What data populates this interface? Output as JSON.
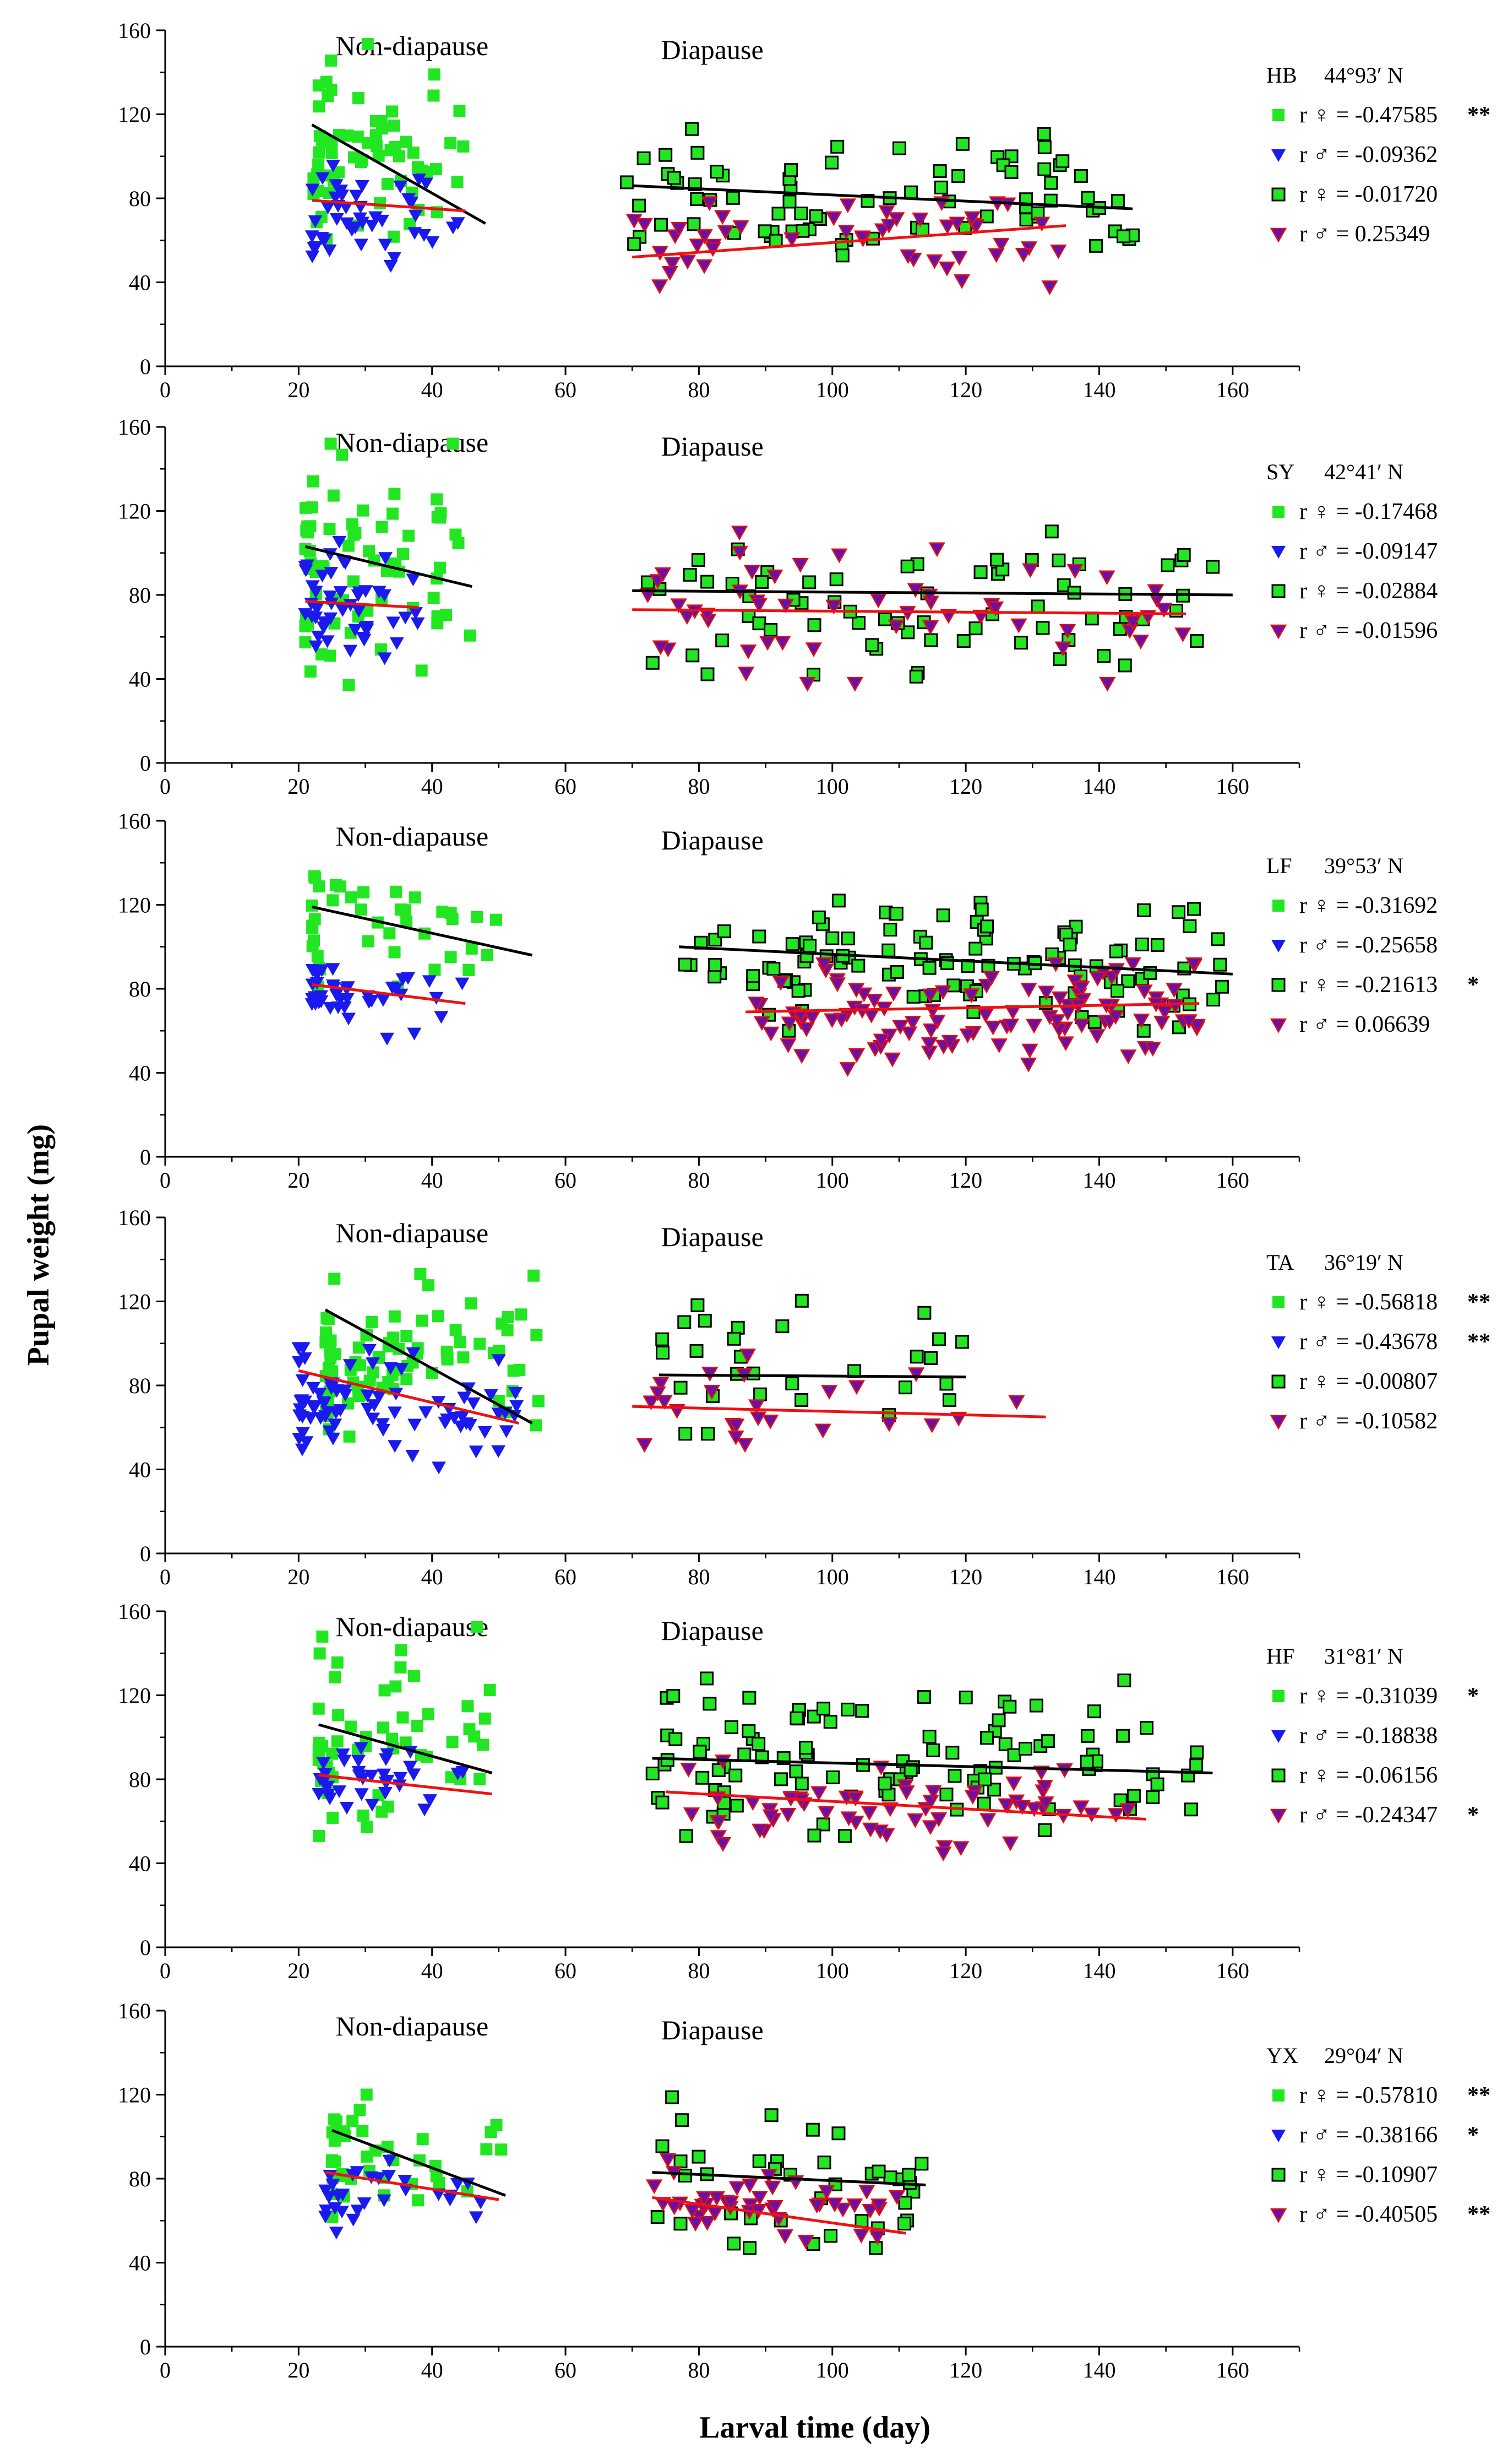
{
  "figure": {
    "ylabel": "Pupal weight (mg)",
    "xlabel": "Larval time (day)"
  },
  "colors": {
    "female_non_diapause": "#22e622",
    "male_non_diapause": "#1a1aee",
    "female_diapause_fill": "#22e622",
    "female_diapause_edge": "#000000",
    "male_diapause_fill": "#6a0fa8",
    "male_diapause_edge": "#e01010",
    "female_line": "#000000",
    "male_line": "#ee1111"
  },
  "chart_data": [
    {
      "type": "scatter",
      "panel": "HB",
      "site": "HB",
      "latitude": "44°93′ N",
      "xlim": [
        0,
        170
      ],
      "ylim": [
        0,
        160
      ],
      "xticks": [
        0,
        20,
        40,
        60,
        80,
        100,
        120,
        140,
        160
      ],
      "yticks": [
        0,
        40,
        80,
        120,
        160
      ],
      "region_labels": [
        "Non-diapause",
        "Diapause"
      ],
      "legend": [
        {
          "marker": "sq",
          "text": "r ♀ = -0.47585",
          "sig": "**"
        },
        {
          "marker": "tri",
          "text": "r ♂ = -0.09362",
          "sig": ""
        },
        {
          "marker": "bsq",
          "text": "r ♀ = -0.01720",
          "sig": ""
        },
        {
          "marker": "btri",
          "text": "r ♂ = 0.25349",
          "sig": ""
        }
      ],
      "trend_lines": {
        "female_non_diapause": [
          [
            22,
            115
          ],
          [
            48,
            68
          ]
        ],
        "male_non_diapause": [
          [
            22,
            79
          ],
          [
            45,
            74
          ]
        ],
        "female_diapause": [
          [
            70,
            86
          ],
          [
            145,
            75
          ]
        ],
        "male_diapause": [
          [
            70,
            52
          ],
          [
            135,
            67
          ]
        ]
      },
      "clusters": [
        {
          "series": "female_non_diapause",
          "seed": 11,
          "n": 65,
          "x": [
            22,
            45
          ],
          "y": [
            50,
            155
          ],
          "mean_y": 100
        },
        {
          "series": "male_non_diapause",
          "seed": 12,
          "n": 45,
          "x": [
            22,
            44
          ],
          "y": [
            48,
            100
          ],
          "mean_y": 76
        },
        {
          "series": "female_diapause",
          "seed": 13,
          "n": 80,
          "x": [
            69,
            146
          ],
          "y": [
            42,
            113
          ],
          "mean_y": 80
        },
        {
          "series": "male_diapause",
          "seed": 14,
          "n": 50,
          "x": [
            70,
            135
          ],
          "y": [
            32,
            78
          ],
          "mean_y": 60
        }
      ]
    },
    {
      "type": "scatter",
      "panel": "SY",
      "site": "SY",
      "latitude": "42°41′ N",
      "xlim": [
        0,
        170
      ],
      "ylim": [
        0,
        160
      ],
      "xticks": [
        0,
        20,
        40,
        60,
        80,
        100,
        120,
        140,
        160
      ],
      "yticks": [
        0,
        40,
        80,
        120,
        160
      ],
      "region_labels": [
        "Non-diapause",
        "Diapause"
      ],
      "legend": [
        {
          "marker": "sq",
          "text": "r ♀ = -0.17468",
          "sig": ""
        },
        {
          "marker": "tri",
          "text": "r ♂ = -0.09147",
          "sig": ""
        },
        {
          "marker": "bsq",
          "text": "r ♀ = -0.02884",
          "sig": ""
        },
        {
          "marker": "btri",
          "text": "r ♂ = -0.01596",
          "sig": ""
        }
      ],
      "trend_lines": {
        "female_non_diapause": [
          [
            21,
            103
          ],
          [
            46,
            84
          ]
        ],
        "male_non_diapause": [
          [
            21,
            77
          ],
          [
            38,
            74
          ]
        ],
        "female_diapause": [
          [
            70,
            82
          ],
          [
            160,
            80
          ]
        ],
        "male_diapause": [
          [
            70,
            73
          ],
          [
            153,
            71
          ]
        ]
      },
      "clusters": [
        {
          "series": "female_non_diapause",
          "seed": 21,
          "n": 70,
          "x": [
            21,
            46
          ],
          "y": [
            37,
            152
          ],
          "mean_y": 95
        },
        {
          "series": "male_non_diapause",
          "seed": 22,
          "n": 50,
          "x": [
            21,
            38
          ],
          "y": [
            50,
            108
          ],
          "mean_y": 76
        },
        {
          "series": "female_diapause",
          "seed": 23,
          "n": 70,
          "x": [
            72,
            160
          ],
          "y": [
            40,
            118
          ],
          "mean_y": 78
        },
        {
          "series": "male_diapause",
          "seed": 24,
          "n": 55,
          "x": [
            70,
            153
          ],
          "y": [
            38,
            110
          ],
          "mean_y": 72
        }
      ]
    },
    {
      "type": "scatter",
      "panel": "LF",
      "site": "LF",
      "latitude": "39°53′ N",
      "xlim": [
        0,
        170
      ],
      "ylim": [
        0,
        160
      ],
      "xticks": [
        0,
        20,
        40,
        60,
        80,
        100,
        120,
        140,
        160
      ],
      "yticks": [
        0,
        40,
        80,
        120,
        160
      ],
      "region_labels": [
        "Non-diapause",
        "Diapause"
      ],
      "legend": [
        {
          "marker": "sq",
          "text": "r ♀ = -0.31692",
          "sig": ""
        },
        {
          "marker": "tri",
          "text": "r ♂ = -0.25658",
          "sig": ""
        },
        {
          "marker": "bsq",
          "text": "r ♀ = -0.21613",
          "sig": "*"
        },
        {
          "marker": "btri",
          "text": "r ♂ = 0.06639",
          "sig": ""
        }
      ],
      "trend_lines": {
        "female_non_diapause": [
          [
            22,
            119
          ],
          [
            55,
            96
          ]
        ],
        "male_non_diapause": [
          [
            22,
            82
          ],
          [
            45,
            73
          ]
        ],
        "female_diapause": [
          [
            77,
            100
          ],
          [
            160,
            87
          ]
        ],
        "male_diapause": [
          [
            87,
            69
          ],
          [
            155,
            73
          ]
        ]
      },
      "clusters": [
        {
          "series": "female_non_diapause",
          "seed": 31,
          "n": 40,
          "x": [
            22,
            55
          ],
          "y": [
            80,
            140
          ],
          "mean_y": 108
        },
        {
          "series": "male_non_diapause",
          "seed": 32,
          "n": 40,
          "x": [
            22,
            45
          ],
          "y": [
            55,
            95
          ],
          "mean_y": 78
        },
        {
          "series": "female_diapause",
          "seed": 33,
          "n": 110,
          "x": [
            77,
            160
          ],
          "y": [
            60,
            122
          ],
          "mean_y": 92
        },
        {
          "series": "male_diapause",
          "seed": 34,
          "n": 110,
          "x": [
            87,
            155
          ],
          "y": [
            36,
            92
          ],
          "mean_y": 70
        }
      ]
    },
    {
      "type": "scatter",
      "panel": "TA",
      "site": "TA",
      "latitude": "36°19′ N",
      "xlim": [
        0,
        170
      ],
      "ylim": [
        0,
        160
      ],
      "xticks": [
        0,
        20,
        40,
        60,
        80,
        100,
        120,
        140,
        160
      ],
      "yticks": [
        0,
        40,
        80,
        120,
        160
      ],
      "region_labels": [
        "Non-diapause",
        "Diapause"
      ],
      "legend": [
        {
          "marker": "sq",
          "text": "r ♀ = -0.56818",
          "sig": "**"
        },
        {
          "marker": "tri",
          "text": "r ♂ = -0.43678",
          "sig": "**"
        },
        {
          "marker": "bsq",
          "text": "r ♀ = -0.00807",
          "sig": ""
        },
        {
          "marker": "btri",
          "text": "r ♂ = -0.10582",
          "sig": ""
        }
      ],
      "trend_lines": {
        "female_non_diapause": [
          [
            24,
            116
          ],
          [
            55,
            62
          ]
        ],
        "male_non_diapause": [
          [
            20,
            87
          ],
          [
            53,
            62
          ]
        ],
        "female_diapause": [
          [
            74,
            85
          ],
          [
            120,
            84
          ]
        ],
        "male_diapause": [
          [
            70,
            70
          ],
          [
            132,
            65
          ]
        ]
      },
      "clusters": [
        {
          "series": "female_non_diapause",
          "seed": 41,
          "n": 80,
          "x": [
            24,
            56
          ],
          "y": [
            48,
            133
          ],
          "mean_y": 95
        },
        {
          "series": "male_non_diapause",
          "seed": 42,
          "n": 80,
          "x": [
            20,
            53
          ],
          "y": [
            32,
            98
          ],
          "mean_y": 72
        },
        {
          "series": "female_diapause",
          "seed": 43,
          "n": 30,
          "x": [
            74,
            120
          ],
          "y": [
            57,
            130
          ],
          "mean_y": 85
        },
        {
          "series": "male_diapause",
          "seed": 44,
          "n": 25,
          "x": [
            70,
            132
          ],
          "y": [
            52,
            100
          ],
          "mean_y": 68
        }
      ]
    },
    {
      "type": "scatter",
      "panel": "HF",
      "site": "HF",
      "latitude": "31°81′ N",
      "xlim": [
        0,
        170
      ],
      "ylim": [
        0,
        160
      ],
      "xticks": [
        0,
        20,
        40,
        60,
        80,
        100,
        120,
        140,
        160
      ],
      "yticks": [
        0,
        40,
        80,
        120,
        160
      ],
      "region_labels": [
        "Non-diapause",
        "Diapause"
      ],
      "legend": [
        {
          "marker": "sq",
          "text": "r ♀ = -0.31039",
          "sig": "*"
        },
        {
          "marker": "tri",
          "text": "r ♂ = -0.18838",
          "sig": ""
        },
        {
          "marker": "bsq",
          "text": "r ♀ = -0.06156",
          "sig": ""
        },
        {
          "marker": "btri",
          "text": "r ♂ = -0.24347",
          "sig": "*"
        }
      ],
      "trend_lines": {
        "female_non_diapause": [
          [
            23,
            106
          ],
          [
            49,
            83
          ]
        ],
        "male_non_diapause": [
          [
            23,
            82
          ],
          [
            49,
            73
          ]
        ],
        "female_diapause": [
          [
            73,
            90
          ],
          [
            157,
            83
          ]
        ],
        "male_diapause": [
          [
            75,
            74
          ],
          [
            147,
            61
          ]
        ]
      },
      "clusters": [
        {
          "series": "female_non_diapause",
          "seed": 51,
          "n": 55,
          "x": [
            23,
            49
          ],
          "y": [
            53,
            153
          ],
          "mean_y": 100
        },
        {
          "series": "male_non_diapause",
          "seed": 52,
          "n": 35,
          "x": [
            23,
            49
          ],
          "y": [
            62,
            97
          ],
          "mean_y": 80
        },
        {
          "series": "female_diapause",
          "seed": 53,
          "n": 110,
          "x": [
            73,
            157
          ],
          "y": [
            53,
            143
          ],
          "mean_y": 88
        },
        {
          "series": "male_diapause",
          "seed": 54,
          "n": 65,
          "x": [
            75,
            147
          ],
          "y": [
            45,
            90
          ],
          "mean_y": 66
        }
      ]
    },
    {
      "type": "scatter",
      "panel": "YX",
      "site": "YX",
      "latitude": "29°04′ N",
      "xlim": [
        0,
        170
      ],
      "ylim": [
        0,
        160
      ],
      "xticks": [
        0,
        20,
        40,
        60,
        80,
        100,
        120,
        140,
        160
      ],
      "yticks": [
        0,
        40,
        80,
        120,
        160
      ],
      "region_labels": [
        "Non-diapause",
        "Diapause"
      ],
      "legend": [
        {
          "marker": "sq",
          "text": "r ♀ = -0.57810",
          "sig": "**"
        },
        {
          "marker": "tri",
          "text": "r ♂ = -0.38166",
          "sig": "*"
        },
        {
          "marker": "bsq",
          "text": "r ♀ = -0.10907",
          "sig": ""
        },
        {
          "marker": "btri",
          "text": "r ♂ = -0.40505",
          "sig": "**"
        }
      ],
      "trend_lines": {
        "female_non_diapause": [
          [
            25,
            103
          ],
          [
            51,
            72
          ]
        ],
        "male_non_diapause": [
          [
            24,
            83
          ],
          [
            50,
            70
          ]
        ],
        "female_diapause": [
          [
            73,
            83
          ],
          [
            114,
            77
          ]
        ],
        "male_diapause": [
          [
            73,
            71
          ],
          [
            111,
            54
          ]
        ]
      },
      "clusters": [
        {
          "series": "female_non_diapause",
          "seed": 61,
          "n": 40,
          "x": [
            25,
            51
          ],
          "y": [
            55,
            120
          ],
          "mean_y": 90
        },
        {
          "series": "male_non_diapause",
          "seed": 62,
          "n": 30,
          "x": [
            24,
            50
          ],
          "y": [
            52,
            92
          ],
          "mean_y": 70
        },
        {
          "series": "female_diapause",
          "seed": 63,
          "n": 40,
          "x": [
            73,
            114
          ],
          "y": [
            47,
            137
          ],
          "mean_y": 80
        },
        {
          "series": "male_diapause",
          "seed": 64,
          "n": 45,
          "x": [
            73,
            111
          ],
          "y": [
            48,
            90
          ],
          "mean_y": 66
        }
      ]
    }
  ]
}
